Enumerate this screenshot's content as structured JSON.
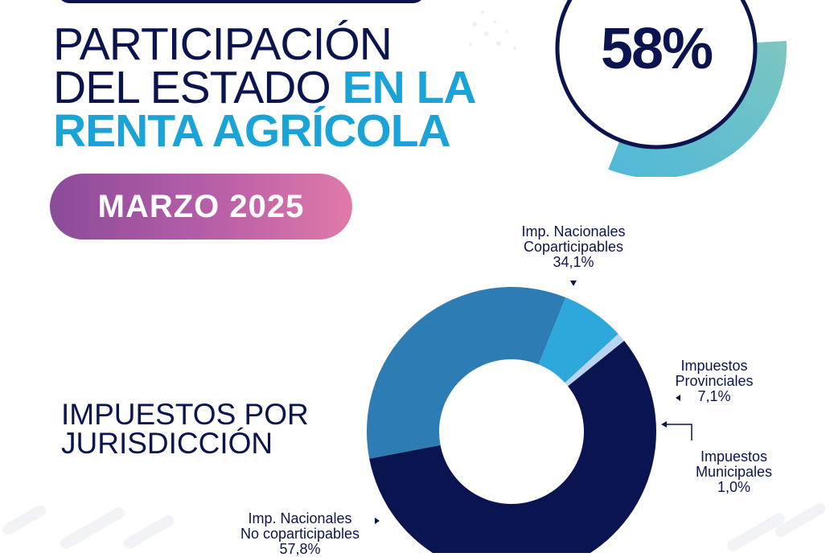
{
  "header": {
    "title_line1": "PARTICIPACIÓN",
    "title_line2_plain": "DEL ESTADO ",
    "title_line2_highlight": "EN LA",
    "title_line3": "RENTA AGRÍCOLA"
  },
  "gauge": {
    "value_label": "58%",
    "fraction": 0.58
  },
  "date_badge": "MARZO 2025",
  "section_title": {
    "line1": "IMPUESTOS POR",
    "line2": "JURISDICCIÓN"
  },
  "colors": {
    "navy": "#0c1450",
    "accent_blue": "#1aa3d6",
    "teal": "#6cc3c4",
    "pill_start": "#8a4b98",
    "pill_end": "#e07aa8"
  },
  "chart_data": {
    "type": "pie",
    "variant": "donut",
    "title": "IMPUESTOS POR JURISDICCIÓN",
    "slices": [
      {
        "label_lines": [
          "Imp. Nacionales",
          "Coparticipables"
        ],
        "value": 34.1,
        "value_label": "34,1%",
        "color": "#2d7db4"
      },
      {
        "label_lines": [
          "Impuestos",
          "Provinciales"
        ],
        "value": 7.1,
        "value_label": "7,1%",
        "color": "#2ea7da"
      },
      {
        "label_lines": [
          "Impuestos",
          "Municipales"
        ],
        "value": 1.0,
        "value_label": "1,0%",
        "color": "#b7d5ef"
      },
      {
        "label_lines": [
          "Imp. Nacionales",
          "No coparticipables"
        ],
        "value": 57.8,
        "value_label": "57,8%",
        "color": "#0a1450"
      }
    ]
  }
}
